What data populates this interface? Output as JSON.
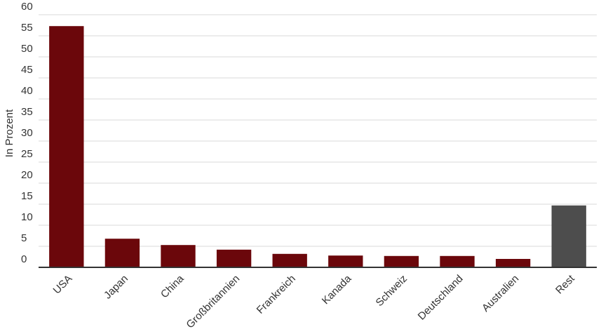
{
  "chart_data": {
    "type": "bar",
    "y_label": "In Prozent",
    "categories": [
      "USA",
      "Japan",
      "China",
      "Großbritannien",
      "Frankreich",
      "Kanada",
      "Schweiz",
      "Deutschland",
      "Australien",
      "Rest"
    ],
    "values": [
      57.3,
      6.8,
      5.3,
      4.2,
      3.2,
      2.8,
      2.7,
      2.7,
      2.0,
      14.7
    ],
    "colors": [
      "#6b070b",
      "#6b070b",
      "#6b070b",
      "#6b070b",
      "#6b070b",
      "#6b070b",
      "#6b070b",
      "#6b070b",
      "#6b070b",
      "#4d4d4d"
    ],
    "ylim": [
      0,
      60
    ],
    "yticks": [
      0,
      5,
      10,
      15,
      20,
      25,
      30,
      35,
      40,
      45,
      50,
      55,
      60
    ],
    "grid": true
  }
}
